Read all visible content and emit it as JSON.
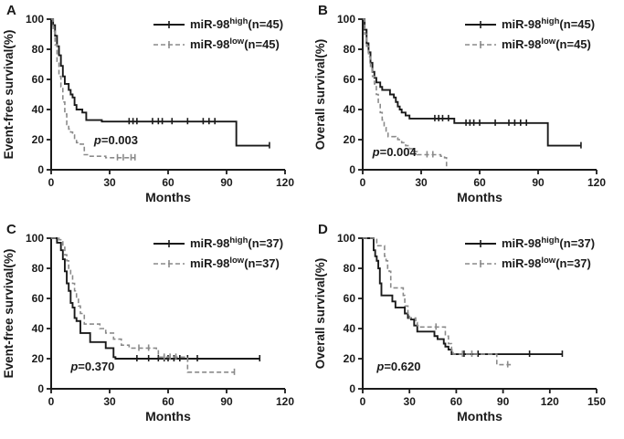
{
  "figure": {
    "background": "#ffffff"
  },
  "colors": {
    "high_series": "#1a1a1a",
    "low_series": "#8a8a8a",
    "axis": "#1a1a1a",
    "text": "#1a1a1a"
  },
  "chart_data": [
    {
      "type": "line",
      "subtype": "kaplan-meier",
      "panel_label": "A",
      "xlabel": "Months",
      "ylabel": "Event-free survival(%)",
      "xlim": [
        0,
        120
      ],
      "xticks": [
        0,
        30,
        60,
        90,
        120
      ],
      "ylim": [
        0,
        100
      ],
      "yticks": [
        0,
        20,
        40,
        60,
        80,
        100
      ],
      "grid": false,
      "legend_position": "top-right",
      "p_label": {
        "italic": "p",
        "rest": "=0.003"
      },
      "p_pos": [
        22,
        17
      ],
      "series": [
        {
          "name_base": "miR-98",
          "name_sup": "high",
          "name_suffix": "(n=45)",
          "style": "solid",
          "steps": [
            [
              0,
              100
            ],
            [
              1,
              96
            ],
            [
              2,
              89
            ],
            [
              3,
              82
            ],
            [
              4,
              76
            ],
            [
              5,
              69
            ],
            [
              6,
              62
            ],
            [
              7,
              57
            ],
            [
              9,
              53
            ],
            [
              10,
              50
            ],
            [
              11,
              48
            ],
            [
              12,
              43
            ],
            [
              13,
              40
            ],
            [
              16,
              38
            ],
            [
              18,
              33
            ],
            [
              26,
              32
            ],
            [
              95,
              16
            ],
            [
              112,
              16
            ]
          ],
          "censors": [
            [
              40,
              32
            ],
            [
              42,
              32
            ],
            [
              44,
              32
            ],
            [
              52,
              32
            ],
            [
              55,
              32
            ],
            [
              57,
              32
            ],
            [
              62,
              32
            ],
            [
              70,
              32
            ],
            [
              78,
              32
            ],
            [
              81,
              32
            ],
            [
              84,
              32
            ],
            [
              112,
              16
            ]
          ]
        },
        {
          "name_base": "miR-98",
          "name_sup": "low",
          "name_suffix": "(n=45)",
          "style": "dashed",
          "steps": [
            [
              0,
              100
            ],
            [
              1,
              92
            ],
            [
              2,
              83
            ],
            [
              3,
              72
            ],
            [
              4,
              62
            ],
            [
              5,
              55
            ],
            [
              6,
              45
            ],
            [
              7,
              37
            ],
            [
              8,
              30
            ],
            [
              9,
              27
            ],
            [
              10,
              25
            ],
            [
              11,
              23
            ],
            [
              12,
              20
            ],
            [
              13,
              18
            ],
            [
              15,
              17
            ],
            [
              17,
              10
            ],
            [
              19,
              9
            ],
            [
              28,
              8
            ],
            [
              43,
              8
            ]
          ],
          "censors": [
            [
              34,
              8
            ],
            [
              37,
              8
            ],
            [
              41,
              8
            ],
            [
              43,
              8
            ]
          ]
        }
      ]
    },
    {
      "type": "line",
      "subtype": "kaplan-meier",
      "panel_label": "B",
      "xlabel": "Months",
      "ylabel": "Overall survival(%)",
      "xlim": [
        0,
        120
      ],
      "xticks": [
        0,
        30,
        60,
        90,
        120
      ],
      "ylim": [
        0,
        100
      ],
      "yticks": [
        0,
        20,
        40,
        60,
        80,
        100
      ],
      "grid": false,
      "legend_position": "top-right",
      "p_label": {
        "italic": "p",
        "rest": "=0.004"
      },
      "p_pos": [
        5,
        9
      ],
      "series": [
        {
          "name_base": "miR-98",
          "name_sup": "high",
          "name_suffix": "(n=45)",
          "style": "solid",
          "steps": [
            [
              0,
              100
            ],
            [
              1,
              93
            ],
            [
              2,
              84
            ],
            [
              3,
              78
            ],
            [
              4,
              71
            ],
            [
              5,
              65
            ],
            [
              6,
              61
            ],
            [
              7,
              58
            ],
            [
              9,
              55
            ],
            [
              10,
              53
            ],
            [
              14,
              50
            ],
            [
              16,
              48
            ],
            [
              17,
              45
            ],
            [
              18,
              42
            ],
            [
              19,
              40
            ],
            [
              20,
              38
            ],
            [
              22,
              36
            ],
            [
              24,
              34
            ],
            [
              47,
              31
            ],
            [
              95,
              16
            ],
            [
              112,
              16
            ]
          ],
          "censors": [
            [
              37,
              34
            ],
            [
              39,
              34
            ],
            [
              41,
              34
            ],
            [
              44,
              34
            ],
            [
              53,
              31
            ],
            [
              55,
              31
            ],
            [
              57,
              31
            ],
            [
              60,
              31
            ],
            [
              68,
              31
            ],
            [
              75,
              31
            ],
            [
              78,
              31
            ],
            [
              81,
              31
            ],
            [
              84,
              31
            ],
            [
              112,
              16
            ]
          ]
        },
        {
          "name_base": "miR-98",
          "name_sup": "low",
          "name_suffix": "(n=45)",
          "style": "dashed",
          "steps": [
            [
              0,
              100
            ],
            [
              1,
              90
            ],
            [
              2,
              82
            ],
            [
              3,
              75
            ],
            [
              4,
              68
            ],
            [
              5,
              62
            ],
            [
              6,
              57
            ],
            [
              7,
              50
            ],
            [
              8,
              44
            ],
            [
              9,
              38
            ],
            [
              10,
              33
            ],
            [
              11,
              28
            ],
            [
              12,
              25
            ],
            [
              13,
              22
            ],
            [
              17,
              21
            ],
            [
              18,
              20
            ],
            [
              20,
              18
            ],
            [
              22,
              16
            ],
            [
              24,
              14
            ],
            [
              26,
              12
            ],
            [
              28,
              10
            ],
            [
              40,
              9
            ],
            [
              42,
              8
            ],
            [
              43,
              2
            ]
          ],
          "censors": [
            [
              33,
              10
            ],
            [
              36,
              10
            ]
          ]
        }
      ]
    },
    {
      "type": "line",
      "subtype": "kaplan-meier",
      "panel_label": "C",
      "xlabel": "Months",
      "ylabel": "Event-free survival(%)",
      "xlim": [
        0,
        120
      ],
      "xticks": [
        0,
        30,
        60,
        90,
        120
      ],
      "ylim": [
        0,
        100
      ],
      "yticks": [
        0,
        20,
        40,
        60,
        80,
        100
      ],
      "grid": false,
      "legend_position": "top-right",
      "p_label": {
        "italic": "p",
        "rest": "=0.370"
      },
      "p_pos": [
        10,
        12
      ],
      "series": [
        {
          "name_base": "miR-98",
          "name_sup": "high",
          "name_suffix": "(n=37)",
          "style": "solid",
          "steps": [
            [
              0,
              100
            ],
            [
              3,
              97
            ],
            [
              5,
              92
            ],
            [
              6,
              86
            ],
            [
              7,
              78
            ],
            [
              8,
              70
            ],
            [
              9,
              65
            ],
            [
              10,
              57
            ],
            [
              11,
              54
            ],
            [
              12,
              47
            ],
            [
              13,
              45
            ],
            [
              15,
              37
            ],
            [
              20,
              31
            ],
            [
              28,
              27
            ],
            [
              32,
              21
            ],
            [
              33,
              20
            ],
            [
              107,
              20
            ]
          ],
          "censors": [
            [
              44,
              20
            ],
            [
              50,
              20
            ],
            [
              55,
              20
            ],
            [
              58,
              20
            ],
            [
              60,
              20
            ],
            [
              63,
              20
            ],
            [
              66,
              20
            ],
            [
              70,
              20
            ],
            [
              75,
              20
            ],
            [
              107,
              20
            ]
          ]
        },
        {
          "name_base": "miR-98",
          "name_sup": "low",
          "name_suffix": "(n=37)",
          "style": "dashed",
          "steps": [
            [
              0,
              100
            ],
            [
              4,
              99
            ],
            [
              6,
              94
            ],
            [
              7,
              89
            ],
            [
              8,
              85
            ],
            [
              9,
              80
            ],
            [
              10,
              75
            ],
            [
              11,
              70
            ],
            [
              12,
              65
            ],
            [
              13,
              60
            ],
            [
              14,
              55
            ],
            [
              15,
              50
            ],
            [
              17,
              43
            ],
            [
              25,
              40
            ],
            [
              28,
              37
            ],
            [
              32,
              33
            ],
            [
              36,
              29
            ],
            [
              40,
              27
            ],
            [
              54,
              26
            ],
            [
              55,
              21
            ],
            [
              69,
              21
            ],
            [
              70,
              11
            ],
            [
              94,
              11
            ]
          ],
          "censors": [
            [
              45,
              27
            ],
            [
              50,
              27
            ],
            [
              58,
              21
            ],
            [
              61,
              21
            ],
            [
              64,
              21
            ],
            [
              94,
              11
            ]
          ]
        }
      ]
    },
    {
      "type": "line",
      "subtype": "kaplan-meier",
      "panel_label": "D",
      "xlabel": "Months",
      "ylabel": "Overall survival(%)",
      "xlim": [
        0,
        150
      ],
      "xticks": [
        0,
        30,
        60,
        90,
        120,
        150
      ],
      "ylim": [
        0,
        100
      ],
      "yticks": [
        0,
        20,
        40,
        60,
        80,
        100
      ],
      "grid": false,
      "legend_position": "top-right",
      "p_label": {
        "italic": "p",
        "rest": "=0.620"
      },
      "p_pos": [
        9,
        12
      ],
      "series": [
        {
          "name_base": "miR-98",
          "name_sup": "high",
          "name_suffix": "(n=37)",
          "style": "solid",
          "steps": [
            [
              0,
              100
            ],
            [
              7,
              92
            ],
            [
              8,
              88
            ],
            [
              9,
              85
            ],
            [
              10,
              80
            ],
            [
              11,
              70
            ],
            [
              12,
              62
            ],
            [
              19,
              58
            ],
            [
              21,
              54
            ],
            [
              27,
              50
            ],
            [
              29,
              47
            ],
            [
              31,
              46
            ],
            [
              33,
              42
            ],
            [
              35,
              38
            ],
            [
              46,
              35
            ],
            [
              48,
              33
            ],
            [
              52,
              30
            ],
            [
              53,
              28
            ],
            [
              55,
              26
            ],
            [
              57,
              23
            ],
            [
              128,
              23
            ]
          ],
          "censors": [
            [
              65,
              23
            ],
            [
              74,
              23
            ],
            [
              107,
              23
            ],
            [
              128,
              23
            ]
          ]
        },
        {
          "name_base": "miR-98",
          "name_sup": "low",
          "name_suffix": "(n=37)",
          "style": "dashed",
          "steps": [
            [
              0,
              100
            ],
            [
              9,
              95
            ],
            [
              14,
              88
            ],
            [
              15,
              85
            ],
            [
              16,
              80
            ],
            [
              17,
              78
            ],
            [
              18,
              67
            ],
            [
              26,
              62
            ],
            [
              27,
              55
            ],
            [
              29,
              50
            ],
            [
              30,
              47
            ],
            [
              34,
              44
            ],
            [
              35,
              42
            ],
            [
              36,
              41
            ],
            [
              52,
              41
            ],
            [
              53,
              35
            ],
            [
              55,
              30
            ],
            [
              57,
              24
            ],
            [
              58,
              23
            ],
            [
              85,
              23
            ],
            [
              86,
              16
            ],
            [
              95,
              16
            ]
          ],
          "censors": [
            [
              47,
              41
            ],
            [
              64,
              23
            ],
            [
              70,
              23
            ],
            [
              93,
              16
            ]
          ]
        }
      ]
    }
  ]
}
